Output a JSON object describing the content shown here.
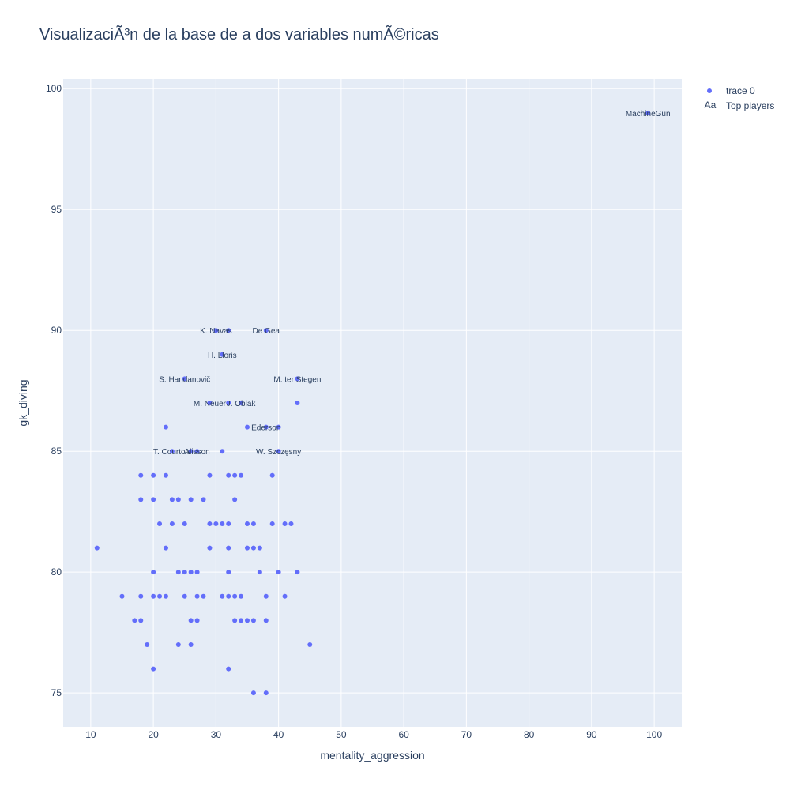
{
  "chart_data": {
    "type": "scatter",
    "title": "VisualizaciÃ³n de la base de a dos variables numÃ©ricas",
    "xlabel": "mentality_aggression",
    "ylabel": "gk_diving",
    "xlim": [
      5.6,
      104.4
    ],
    "ylim": [
      73.6,
      100.4
    ],
    "xticks": [
      10,
      20,
      30,
      40,
      50,
      60,
      70,
      80,
      90,
      100
    ],
    "yticks": [
      75,
      80,
      85,
      90,
      95,
      100
    ],
    "grid": true,
    "legend_position": "top-right",
    "legend": [
      {
        "name": "trace 0",
        "symbol": "marker"
      },
      {
        "name": "Top players",
        "symbol": "Aa"
      }
    ],
    "colors": {
      "marker": "#636efa",
      "plot_bg": "#e5ecf6",
      "grid": "#ffffff",
      "text": "#2a3f5f"
    },
    "series": [
      {
        "name": "trace 0",
        "points": [
          {
            "x": 99,
            "y": 99
          },
          {
            "x": 30,
            "y": 90
          },
          {
            "x": 32,
            "y": 90
          },
          {
            "x": 38,
            "y": 90
          },
          {
            "x": 31,
            "y": 89
          },
          {
            "x": 25,
            "y": 88
          },
          {
            "x": 43,
            "y": 88
          },
          {
            "x": 29,
            "y": 87
          },
          {
            "x": 32,
            "y": 87
          },
          {
            "x": 34,
            "y": 87
          },
          {
            "x": 43,
            "y": 87
          },
          {
            "x": 22,
            "y": 86
          },
          {
            "x": 35,
            "y": 86
          },
          {
            "x": 38,
            "y": 86
          },
          {
            "x": 40,
            "y": 86
          },
          {
            "x": 23,
            "y": 85
          },
          {
            "x": 26,
            "y": 85
          },
          {
            "x": 27,
            "y": 85
          },
          {
            "x": 31,
            "y": 85
          },
          {
            "x": 40,
            "y": 85
          },
          {
            "x": 18,
            "y": 84
          },
          {
            "x": 20,
            "y": 84
          },
          {
            "x": 22,
            "y": 84
          },
          {
            "x": 29,
            "y": 84
          },
          {
            "x": 32,
            "y": 84
          },
          {
            "x": 33,
            "y": 84
          },
          {
            "x": 34,
            "y": 84
          },
          {
            "x": 39,
            "y": 84
          },
          {
            "x": 18,
            "y": 83
          },
          {
            "x": 20,
            "y": 83
          },
          {
            "x": 23,
            "y": 83
          },
          {
            "x": 24,
            "y": 83
          },
          {
            "x": 26,
            "y": 83
          },
          {
            "x": 28,
            "y": 83
          },
          {
            "x": 33,
            "y": 83
          },
          {
            "x": 21,
            "y": 82
          },
          {
            "x": 23,
            "y": 82
          },
          {
            "x": 25,
            "y": 82
          },
          {
            "x": 29,
            "y": 82
          },
          {
            "x": 30,
            "y": 82
          },
          {
            "x": 31,
            "y": 82
          },
          {
            "x": 32,
            "y": 82
          },
          {
            "x": 35,
            "y": 82
          },
          {
            "x": 36,
            "y": 82
          },
          {
            "x": 39,
            "y": 82
          },
          {
            "x": 41,
            "y": 82
          },
          {
            "x": 42,
            "y": 82
          },
          {
            "x": 11,
            "y": 81
          },
          {
            "x": 22,
            "y": 81
          },
          {
            "x": 29,
            "y": 81
          },
          {
            "x": 32,
            "y": 81
          },
          {
            "x": 35,
            "y": 81
          },
          {
            "x": 36,
            "y": 81
          },
          {
            "x": 37,
            "y": 81
          },
          {
            "x": 20,
            "y": 80
          },
          {
            "x": 24,
            "y": 80
          },
          {
            "x": 25,
            "y": 80
          },
          {
            "x": 26,
            "y": 80
          },
          {
            "x": 27,
            "y": 80
          },
          {
            "x": 32,
            "y": 80
          },
          {
            "x": 37,
            "y": 80
          },
          {
            "x": 40,
            "y": 80
          },
          {
            "x": 43,
            "y": 80
          },
          {
            "x": 15,
            "y": 79
          },
          {
            "x": 18,
            "y": 79
          },
          {
            "x": 20,
            "y": 79
          },
          {
            "x": 21,
            "y": 79
          },
          {
            "x": 22,
            "y": 79
          },
          {
            "x": 25,
            "y": 79
          },
          {
            "x": 27,
            "y": 79
          },
          {
            "x": 28,
            "y": 79
          },
          {
            "x": 31,
            "y": 79
          },
          {
            "x": 32,
            "y": 79
          },
          {
            "x": 33,
            "y": 79
          },
          {
            "x": 34,
            "y": 79
          },
          {
            "x": 38,
            "y": 79
          },
          {
            "x": 41,
            "y": 79
          },
          {
            "x": 17,
            "y": 78
          },
          {
            "x": 18,
            "y": 78
          },
          {
            "x": 26,
            "y": 78
          },
          {
            "x": 27,
            "y": 78
          },
          {
            "x": 33,
            "y": 78
          },
          {
            "x": 34,
            "y": 78
          },
          {
            "x": 35,
            "y": 78
          },
          {
            "x": 36,
            "y": 78
          },
          {
            "x": 38,
            "y": 78
          },
          {
            "x": 19,
            "y": 77
          },
          {
            "x": 24,
            "y": 77
          },
          {
            "x": 26,
            "y": 77
          },
          {
            "x": 45,
            "y": 77
          },
          {
            "x": 20,
            "y": 76
          },
          {
            "x": 32,
            "y": 76
          },
          {
            "x": 36,
            "y": 75
          },
          {
            "x": 38,
            "y": 75
          }
        ]
      }
    ],
    "annotations": [
      {
        "text": "MachineGun",
        "x": 99,
        "y": 99
      },
      {
        "text": "K. Navas",
        "x": 30,
        "y": 90
      },
      {
        "text": "De Gea",
        "x": 38,
        "y": 90
      },
      {
        "text": "H. Lloris",
        "x": 31,
        "y": 89
      },
      {
        "text": "S. Handanovič",
        "x": 25,
        "y": 88
      },
      {
        "text": "M. ter Stegen",
        "x": 43,
        "y": 88
      },
      {
        "text": "M. Neuer",
        "x": 29,
        "y": 87
      },
      {
        "text": "J. Oblak",
        "x": 34,
        "y": 87
      },
      {
        "text": "Ederson",
        "x": 38,
        "y": 86
      },
      {
        "text": "T. Courtois",
        "x": 23,
        "y": 85
      },
      {
        "text": "Alisson",
        "x": 27,
        "y": 85
      },
      {
        "text": "W. Szczęsny",
        "x": 40,
        "y": 85
      }
    ]
  }
}
